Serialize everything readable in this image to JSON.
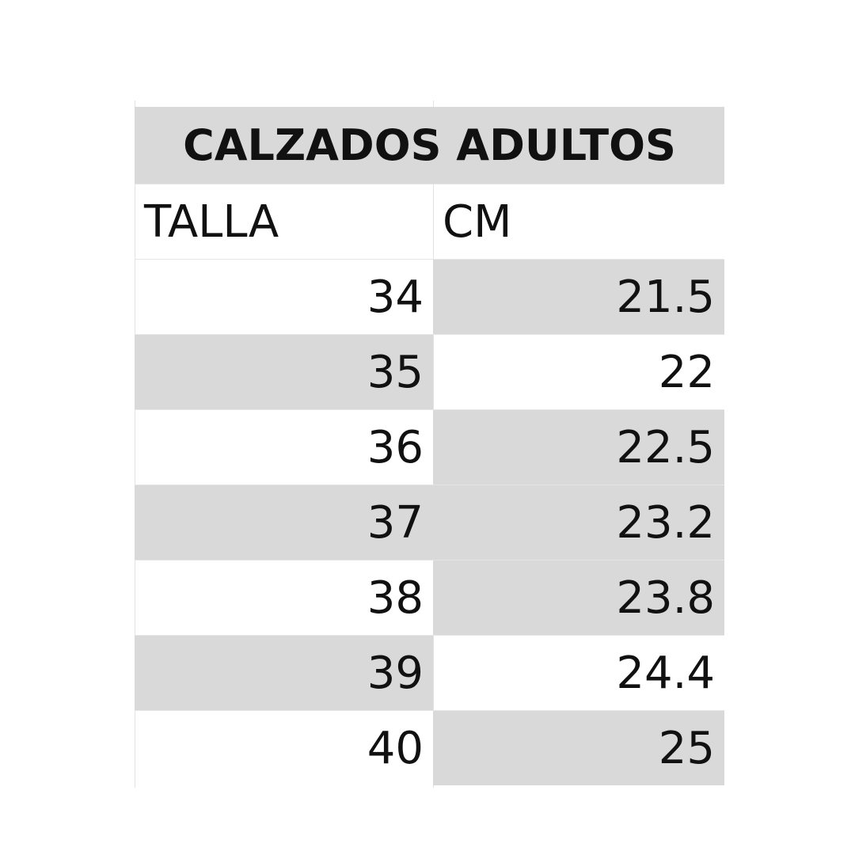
{
  "title": "CALZADOS ADULTOS",
  "headers": [
    "TALLA",
    "CM"
  ],
  "colors": {
    "shade": "#d9d9d9",
    "grid": "#e2e2e2"
  },
  "rows": [
    {
      "talla": "34",
      "cm": "21.5",
      "shade_talla": false,
      "shade_cm": true
    },
    {
      "talla": "35",
      "cm": "22",
      "shade_talla": true,
      "shade_cm": false
    },
    {
      "talla": "36",
      "cm": "22.5",
      "shade_talla": false,
      "shade_cm": true
    },
    {
      "talla": "37",
      "cm": "23.2",
      "shade_talla": true,
      "shade_cm": true
    },
    {
      "talla": "38",
      "cm": "23.8",
      "shade_talla": false,
      "shade_cm": true
    },
    {
      "talla": "39",
      "cm": "24.4",
      "shade_talla": true,
      "shade_cm": false
    },
    {
      "talla": "40",
      "cm": "25",
      "shade_talla": false,
      "shade_cm": true
    }
  ]
}
